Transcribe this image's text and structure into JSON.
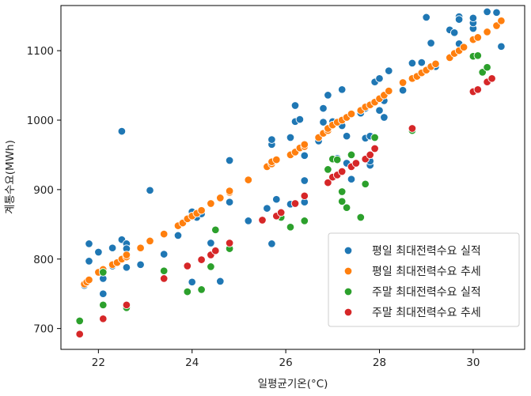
{
  "chart_data": {
    "type": "scatter",
    "xlabel": "일평균기온(°C)",
    "ylabel": "계통수요(MWh)",
    "xlim": [
      21.2,
      31.1
    ],
    "ylim": [
      670,
      1165
    ],
    "x_ticks": [
      22,
      24,
      26,
      28,
      30
    ],
    "y_ticks": [
      700,
      800,
      900,
      1000,
      1100
    ],
    "grid": false,
    "legend_position": "lower-right",
    "series": [
      {
        "name": "평일 최대전력수요 실적",
        "color": "#1f77b4",
        "points": [
          [
            21.7,
            762
          ],
          [
            21.8,
            822
          ],
          [
            21.8,
            797
          ],
          [
            22.0,
            810
          ],
          [
            22.1,
            750
          ],
          [
            22.1,
            772
          ],
          [
            22.3,
            790
          ],
          [
            22.3,
            816
          ],
          [
            22.4,
            795
          ],
          [
            22.5,
            828
          ],
          [
            22.5,
            984
          ],
          [
            22.6,
            788
          ],
          [
            22.6,
            806
          ],
          [
            22.6,
            822
          ],
          [
            22.6,
            815
          ],
          [
            22.9,
            792
          ],
          [
            23.1,
            899
          ],
          [
            23.4,
            807
          ],
          [
            23.7,
            834
          ],
          [
            23.8,
            853
          ],
          [
            24.0,
            767
          ],
          [
            24.0,
            868
          ],
          [
            24.1,
            860
          ],
          [
            24.2,
            865
          ],
          [
            24.4,
            823
          ],
          [
            24.6,
            768
          ],
          [
            24.8,
            942
          ],
          [
            24.8,
            882
          ],
          [
            25.2,
            855
          ],
          [
            25.6,
            873
          ],
          [
            25.7,
            965
          ],
          [
            25.7,
            972
          ],
          [
            25.7,
            822
          ],
          [
            25.8,
            886
          ],
          [
            26.1,
            879
          ],
          [
            26.1,
            975
          ],
          [
            26.2,
            998
          ],
          [
            26.2,
            1021
          ],
          [
            26.3,
            960
          ],
          [
            26.3,
            1001
          ],
          [
            26.4,
            949
          ],
          [
            26.4,
            913
          ],
          [
            26.4,
            882
          ],
          [
            26.7,
            970
          ],
          [
            26.8,
            1017
          ],
          [
            26.8,
            997
          ],
          [
            26.9,
            1036
          ],
          [
            27.0,
            998
          ],
          [
            27.1,
            945
          ],
          [
            27.2,
            1044
          ],
          [
            27.2,
            992
          ],
          [
            27.3,
            977
          ],
          [
            27.3,
            938
          ],
          [
            27.4,
            915
          ],
          [
            27.6,
            1010
          ],
          [
            27.7,
            1017
          ],
          [
            27.7,
            974
          ],
          [
            27.8,
            935
          ],
          [
            27.8,
            941
          ],
          [
            27.8,
            977
          ],
          [
            27.9,
            1055
          ],
          [
            28.0,
            1060
          ],
          [
            28.0,
            1014
          ],
          [
            28.1,
            1004
          ],
          [
            28.1,
            1028
          ],
          [
            28.2,
            1071
          ],
          [
            28.5,
            1043
          ],
          [
            28.7,
            1082
          ],
          [
            28.9,
            1083
          ],
          [
            29.0,
            1148
          ],
          [
            29.1,
            1111
          ],
          [
            29.2,
            1077
          ],
          [
            29.5,
            1130
          ],
          [
            29.6,
            1126
          ],
          [
            29.7,
            1149
          ],
          [
            29.7,
            1110
          ],
          [
            29.7,
            1145
          ],
          [
            30.0,
            1132
          ],
          [
            30.0,
            1140
          ],
          [
            30.0,
            1147
          ],
          [
            30.3,
            1156
          ],
          [
            30.5,
            1155
          ],
          [
            30.6,
            1106
          ]
        ]
      },
      {
        "name": "평일 최대전력수요 추세",
        "color": "#ff7f0e",
        "points": [
          [
            21.7,
            764
          ],
          [
            21.75,
            767
          ],
          [
            21.8,
            770
          ],
          [
            22.0,
            781
          ],
          [
            22.1,
            785
          ],
          [
            22.3,
            792
          ],
          [
            22.4,
            795
          ],
          [
            22.5,
            800
          ],
          [
            22.6,
            803
          ],
          [
            22.6,
            806
          ],
          [
            22.9,
            816
          ],
          [
            23.1,
            826
          ],
          [
            23.4,
            836
          ],
          [
            23.7,
            848
          ],
          [
            23.8,
            852
          ],
          [
            23.9,
            858
          ],
          [
            24.0,
            862
          ],
          [
            24.1,
            866
          ],
          [
            24.2,
            870
          ],
          [
            24.4,
            880
          ],
          [
            24.6,
            888
          ],
          [
            24.8,
            896
          ],
          [
            24.8,
            898
          ],
          [
            25.2,
            914
          ],
          [
            25.6,
            933
          ],
          [
            25.7,
            937
          ],
          [
            25.7,
            940
          ],
          [
            25.8,
            943
          ],
          [
            26.1,
            950
          ],
          [
            26.2,
            954
          ],
          [
            26.3,
            960
          ],
          [
            26.4,
            962
          ],
          [
            26.4,
            965
          ],
          [
            26.7,
            975
          ],
          [
            26.8,
            981
          ],
          [
            26.9,
            985
          ],
          [
            26.9,
            988
          ],
          [
            27.0,
            993
          ],
          [
            27.1,
            997
          ],
          [
            27.2,
            1000
          ],
          [
            27.3,
            1004
          ],
          [
            27.4,
            1009
          ],
          [
            27.6,
            1014
          ],
          [
            27.7,
            1019
          ],
          [
            27.8,
            1022
          ],
          [
            27.9,
            1026
          ],
          [
            28.0,
            1031
          ],
          [
            28.1,
            1036
          ],
          [
            28.2,
            1042
          ],
          [
            28.5,
            1054
          ],
          [
            28.7,
            1060
          ],
          [
            28.8,
            1063
          ],
          [
            28.9,
            1068
          ],
          [
            29.0,
            1072
          ],
          [
            29.1,
            1077
          ],
          [
            29.2,
            1081
          ],
          [
            29.5,
            1090
          ],
          [
            29.6,
            1096
          ],
          [
            29.7,
            1100
          ],
          [
            29.8,
            1105
          ],
          [
            30.0,
            1116
          ],
          [
            30.1,
            1119
          ],
          [
            30.3,
            1127
          ],
          [
            30.5,
            1136
          ],
          [
            30.6,
            1143
          ]
        ]
      },
      {
        "name": "주말 최대전력수요 실적",
        "color": "#2ca02c",
        "points": [
          [
            21.6,
            711
          ],
          [
            22.1,
            734
          ],
          [
            22.1,
            781
          ],
          [
            22.6,
            730
          ],
          [
            23.4,
            783
          ],
          [
            23.9,
            753
          ],
          [
            24.2,
            756
          ],
          [
            24.4,
            789
          ],
          [
            24.5,
            842
          ],
          [
            24.8,
            815
          ],
          [
            25.9,
            860
          ],
          [
            26.1,
            846
          ],
          [
            26.4,
            855
          ],
          [
            26.9,
            929
          ],
          [
            27.0,
            944
          ],
          [
            27.1,
            943
          ],
          [
            27.2,
            897
          ],
          [
            27.2,
            883
          ],
          [
            27.3,
            874
          ],
          [
            27.4,
            950
          ],
          [
            27.6,
            860
          ],
          [
            27.7,
            908
          ],
          [
            27.9,
            975
          ],
          [
            28.7,
            985
          ],
          [
            30.0,
            1092
          ],
          [
            30.1,
            1093
          ],
          [
            30.2,
            1069
          ],
          [
            30.3,
            1076
          ]
        ]
      },
      {
        "name": "주말 최대전력수요 추세",
        "color": "#d62728",
        "points": [
          [
            21.6,
            692
          ],
          [
            22.1,
            714
          ],
          [
            22.6,
            734
          ],
          [
            23.4,
            772
          ],
          [
            23.9,
            790
          ],
          [
            24.2,
            799
          ],
          [
            24.4,
            806
          ],
          [
            24.5,
            812
          ],
          [
            24.8,
            823
          ],
          [
            25.5,
            856
          ],
          [
            25.8,
            862
          ],
          [
            25.9,
            867
          ],
          [
            26.2,
            880
          ],
          [
            26.4,
            891
          ],
          [
            26.9,
            910
          ],
          [
            27.0,
            918
          ],
          [
            27.1,
            921
          ],
          [
            27.2,
            926
          ],
          [
            27.4,
            933
          ],
          [
            27.5,
            938
          ],
          [
            27.7,
            944
          ],
          [
            27.8,
            950
          ],
          [
            27.9,
            959
          ],
          [
            28.7,
            988
          ],
          [
            30.0,
            1041
          ],
          [
            30.1,
            1044
          ],
          [
            30.3,
            1055
          ],
          [
            30.4,
            1060
          ]
        ]
      }
    ]
  }
}
